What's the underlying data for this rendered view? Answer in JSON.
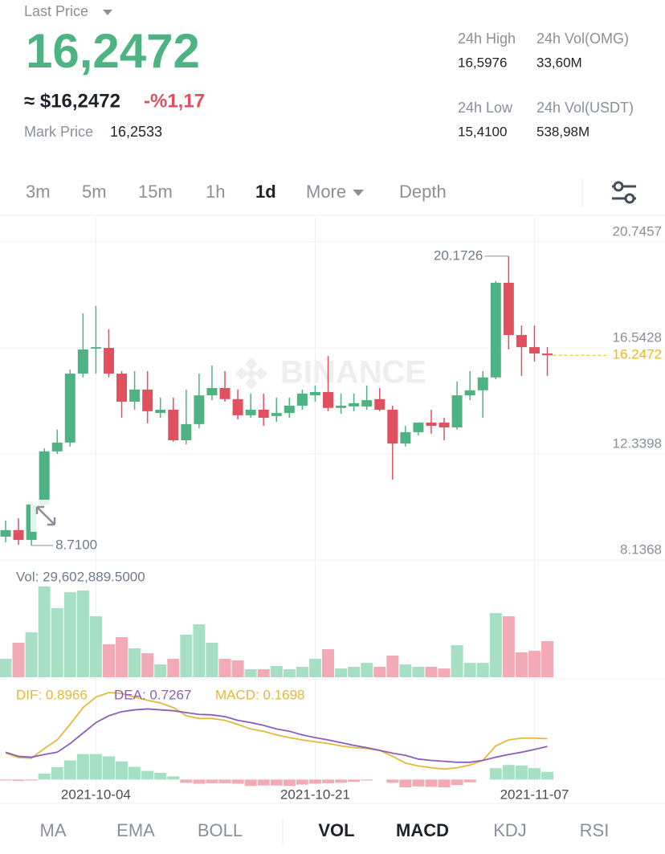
{
  "header": {
    "last_price_label": "Last Price",
    "last_price": "16,2472",
    "usd_price": "≈ $16,2472",
    "change": "-%1,17",
    "mark_price_label": "Mark Price",
    "mark_price": "16,2533",
    "stats": [
      {
        "label": "24h High",
        "value": "16,5976"
      },
      {
        "label": "24h Vol(OMG)",
        "value": "33,60M"
      },
      {
        "label": "24h Low",
        "value": "15,4100"
      },
      {
        "label": "24h Vol(USDT)",
        "value": "538,98M"
      }
    ]
  },
  "tabs": {
    "items": [
      "3m",
      "5m",
      "15m",
      "1h",
      "1d",
      "More",
      "Depth"
    ],
    "active": "1d"
  },
  "watermark": "BINANCE",
  "bottom_tabs": {
    "items": [
      "MA",
      "EMA",
      "BOLL",
      "VOL",
      "MACD",
      "KDJ",
      "RSI"
    ],
    "active": [
      "VOL",
      "MACD"
    ]
  },
  "chart_data": [
    {
      "type": "candlestick",
      "categories": [
        null,
        null,
        null,
        null,
        null,
        null,
        null,
        "2021-10-04",
        null,
        null,
        null,
        null,
        null,
        null,
        null,
        null,
        null,
        null,
        null,
        null,
        null,
        null,
        null,
        null,
        "2021-10-21",
        null,
        null,
        null,
        null,
        null,
        null,
        null,
        null,
        null,
        null,
        null,
        null,
        null,
        null,
        null,
        null,
        "2021-11-07",
        null
      ],
      "open": [
        9.06,
        9.32,
        8.93,
        10.33,
        12.44,
        12.79,
        15.52,
        16.51,
        16.54,
        15.52,
        14.41,
        14.89,
        13.96,
        14.09,
        12.88,
        13.52,
        14.66,
        14.95,
        14.51,
        13.87,
        14.09,
        13.84,
        13.96,
        14.25,
        14.66,
        14.79,
        14.16,
        14.22,
        14.22,
        14.51,
        14.09,
        12.75,
        13.2,
        13.58,
        13.58,
        13.39,
        14.66,
        14.86,
        15.37,
        19.12,
        17.05,
        16.57,
        16.32
      ],
      "high": [
        9.7,
        9.79,
        10.43,
        12.56,
        13.3,
        15.68,
        17.91,
        18.2,
        17.28,
        15.62,
        15.62,
        15.62,
        14.57,
        14.57,
        14.89,
        15.52,
        15.84,
        15.62,
        14.89,
        14.73,
        14.73,
        14.57,
        14.57,
        14.89,
        15.05,
        16.22,
        14.73,
        14.73,
        15.05,
        14.95,
        14.25,
        13.45,
        13.58,
        14.09,
        13.77,
        15.21,
        15.62,
        15.62,
        19.19,
        20.1726,
        17.43,
        17.43,
        16.57
      ],
      "low": [
        8.84,
        8.74,
        8.71,
        10.21,
        12.34,
        12.63,
        15.37,
        15.52,
        15.37,
        13.77,
        14.09,
        13.55,
        13.77,
        12.82,
        12.72,
        13.36,
        14.47,
        14.41,
        13.71,
        13.77,
        13.45,
        13.61,
        13.77,
        14.09,
        14.41,
        14.03,
        13.93,
        14.03,
        14.09,
        14.03,
        11.32,
        12.63,
        13.07,
        13.14,
        12.88,
        13.3,
        14.47,
        13.77,
        15.3,
        16.48,
        15.43,
        16.0,
        15.43
      ],
      "close": [
        9.32,
        8.93,
        10.33,
        12.44,
        12.79,
        15.52,
        16.48,
        16.57,
        15.52,
        14.41,
        14.89,
        14.03,
        14.09,
        12.88,
        13.52,
        14.66,
        14.95,
        14.51,
        13.87,
        14.09,
        13.77,
        13.96,
        14.25,
        14.73,
        14.79,
        14.16,
        14.25,
        14.35,
        14.47,
        14.09,
        12.75,
        13.2,
        13.58,
        13.45,
        13.39,
        14.66,
        14.86,
        15.37,
        19.12,
        17.05,
        16.57,
        16.32,
        16.2472
      ],
      "low_label": "8.7100",
      "ylim": [
        8.1368,
        21.73
      ],
      "yticks": [
        20.7457,
        16.5428,
        12.3398,
        8.1368
      ],
      "grid": true,
      "up_color": "#4eb383",
      "down_color": "#e0505f",
      "last_color": "#f0b90b"
    },
    {
      "type": "bar",
      "label": "Vol: 29,602,889.5000",
      "values": [
        15100000,
        28300000,
        36800000,
        74400000,
        56600000,
        69700000,
        71100000,
        50000000,
        27000000,
        32900000,
        23700000,
        19700000,
        10500000,
        15100000,
        34900000,
        43400000,
        28300000,
        15100000,
        13800000,
        6600000,
        6600000,
        9200000,
        6600000,
        8600000,
        15100000,
        23000000,
        7200000,
        8600000,
        11800000,
        8600000,
        17800000,
        10500000,
        8600000,
        8600000,
        7200000,
        26300000,
        11800000,
        11800000,
        52600000,
        50000000,
        20400000,
        21700000,
        29602889.5
      ],
      "up_color": "#a6dfc3",
      "down_color": "#f1aab6"
    },
    {
      "type": "macd",
      "series": [
        {
          "label": "DIF: 0.8966",
          "color": "#e3b83b",
          "values": [
            0.58,
            0.48,
            0.47,
            0.68,
            0.87,
            1.21,
            1.58,
            1.81,
            1.91,
            1.89,
            1.81,
            1.74,
            1.68,
            1.58,
            1.4,
            1.34,
            1.34,
            1.3,
            1.21,
            1.11,
            1.06,
            0.98,
            0.92,
            0.87,
            0.83,
            0.79,
            0.74,
            0.7,
            0.68,
            0.64,
            0.51,
            0.36,
            0.3,
            0.26,
            0.23,
            0.26,
            0.32,
            0.42,
            0.74,
            0.87,
            0.91,
            0.91,
            0.8966
          ]
        },
        {
          "label": "DEA: 0.7267",
          "color": "#8a5fb8",
          "values": [
            0.6,
            0.51,
            0.49,
            0.55,
            0.6,
            0.79,
            1.02,
            1.25,
            1.4,
            1.49,
            1.53,
            1.55,
            1.53,
            1.51,
            1.47,
            1.43,
            1.42,
            1.38,
            1.3,
            1.25,
            1.19,
            1.11,
            1.06,
            0.98,
            0.92,
            0.87,
            0.81,
            0.75,
            0.7,
            0.64,
            0.58,
            0.53,
            0.45,
            0.42,
            0.4,
            0.38,
            0.38,
            0.42,
            0.49,
            0.55,
            0.6,
            0.66,
            0.7267
          ]
        }
      ],
      "histogram": {
        "label": "MACD: 0.1698",
        "color": "#e3b83b",
        "up_color": "#a6dfc3",
        "down_color": "#f1aab6",
        "values": [
          -0.02,
          -0.03,
          -0.02,
          0.13,
          0.27,
          0.42,
          0.56,
          0.56,
          0.51,
          0.4,
          0.28,
          0.19,
          0.15,
          0.07,
          -0.07,
          -0.09,
          -0.08,
          -0.08,
          -0.09,
          -0.14,
          -0.13,
          -0.13,
          -0.14,
          -0.11,
          -0.09,
          -0.08,
          -0.07,
          -0.05,
          -0.02,
          0.0,
          -0.07,
          -0.17,
          -0.15,
          -0.16,
          -0.17,
          -0.12,
          -0.06,
          0.0,
          0.25,
          0.32,
          0.31,
          0.25,
          0.1698
        ]
      }
    }
  ]
}
